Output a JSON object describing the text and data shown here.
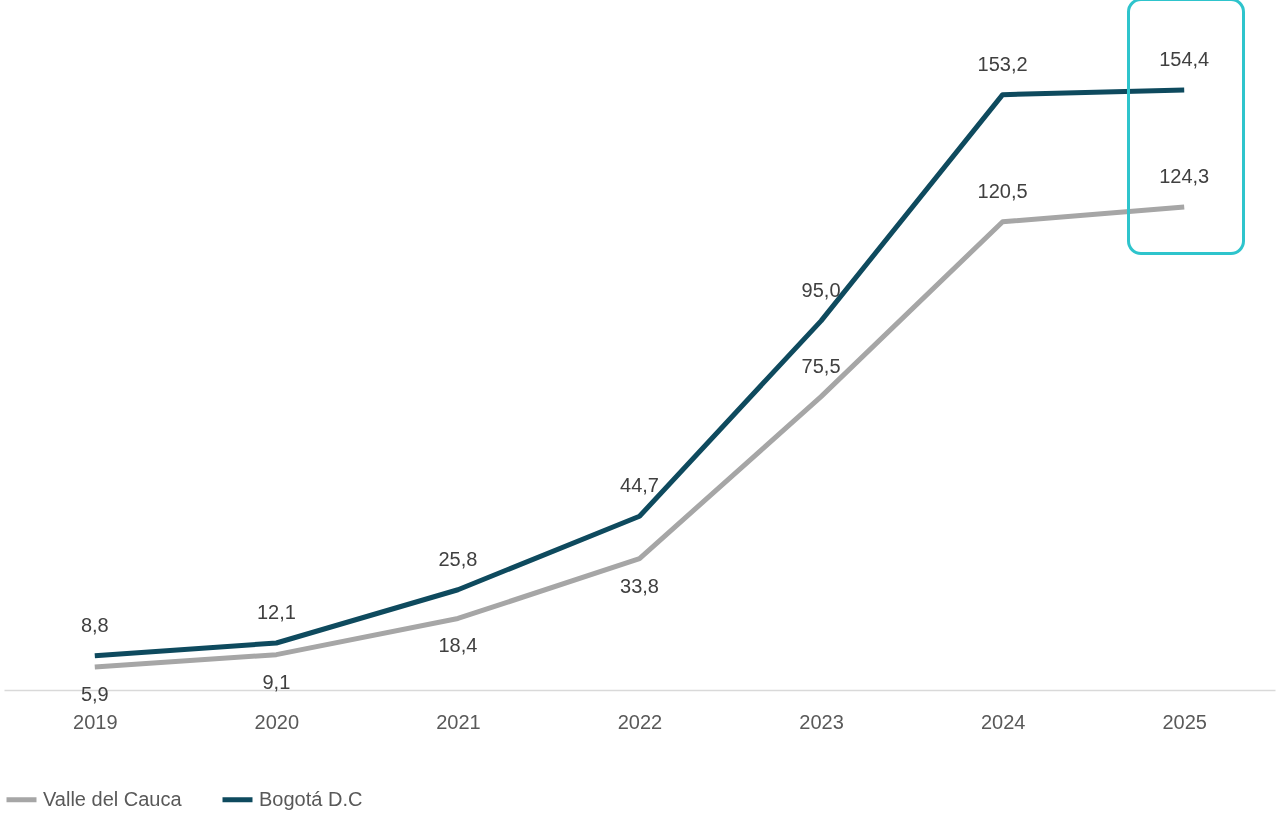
{
  "chart_data": {
    "type": "line",
    "categories": [
      "2019",
      "2020",
      "2021",
      "2022",
      "2023",
      "2024",
      "2025"
    ],
    "series": [
      {
        "name": "Valle del Cauca",
        "color": "#a6a6a6",
        "values": [
          5.9,
          9.1,
          18.4,
          33.8,
          75.5,
          120.5,
          124.3
        ],
        "value_labels": [
          "5,9",
          "9,1",
          "18,4",
          "33,8",
          "75,5",
          "120,5",
          "124,3"
        ]
      },
      {
        "name": "Bogotá D.C",
        "color": "#0e4a5e",
        "values": [
          8.8,
          12.1,
          25.8,
          44.7,
          95.0,
          153.2,
          154.4
        ],
        "value_labels": [
          "8,8",
          "12,1",
          "25,8",
          "44,7",
          "95,0",
          "153,2",
          "154,4"
        ]
      }
    ],
    "tick_labels": "x",
    "grid": false,
    "legend": "bottom",
    "marker": "none",
    "line_style": "solid"
  }
}
